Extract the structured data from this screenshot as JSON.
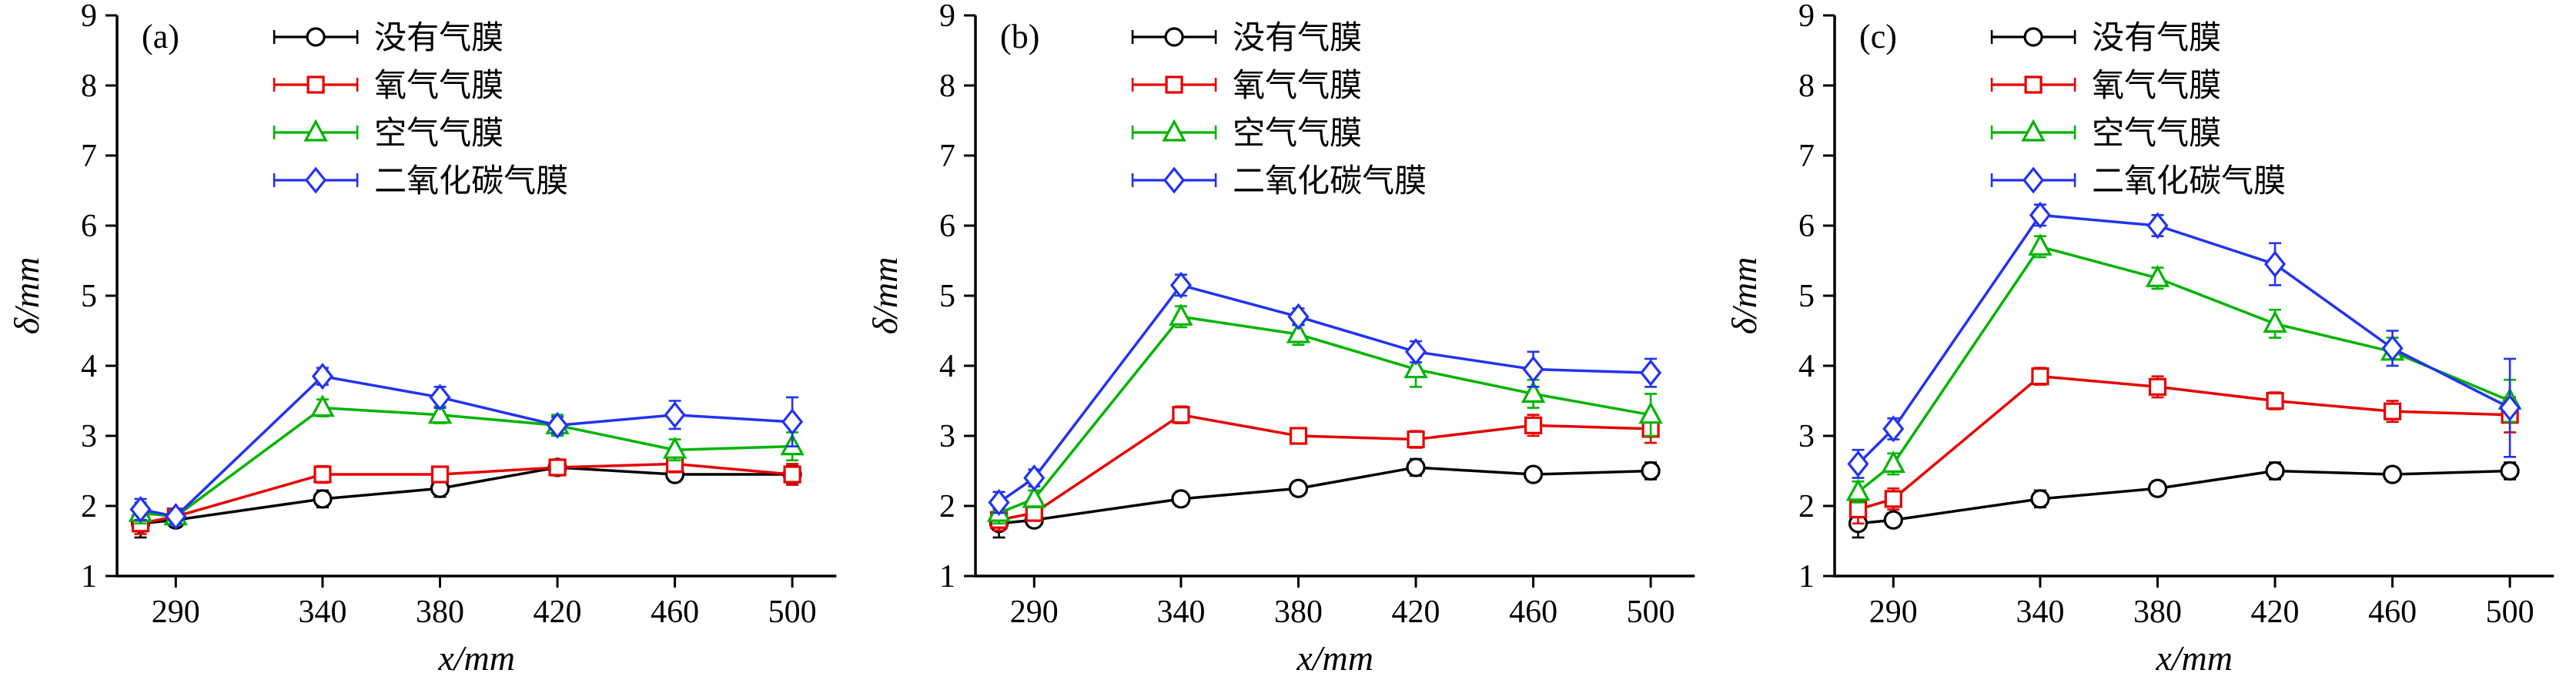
{
  "figure": {
    "background": "#ffffff"
  },
  "chart_data": [
    {
      "type": "line",
      "panel_label": "(a)",
      "xlabel": "x/mm",
      "ylabel": "δ/mm",
      "xlim": [
        270,
        515
      ],
      "ylim": [
        1,
        9
      ],
      "xticks": [
        290,
        340,
        380,
        420,
        460,
        500
      ],
      "yticks": [
        1,
        2,
        3,
        4,
        5,
        6,
        7,
        8,
        9
      ],
      "x": [
        278,
        290,
        340,
        380,
        420,
        460,
        500
      ],
      "grid": false,
      "legend_position": "top-right-inside",
      "series": [
        {
          "name": "没有气膜",
          "color": "#000000",
          "marker": "circle",
          "values": [
            1.75,
            1.8,
            2.1,
            2.25,
            2.55,
            2.45,
            2.45
          ],
          "errors": [
            0.2,
            0.1,
            0.12,
            0.12,
            0.1,
            0.1,
            0.12
          ]
        },
        {
          "name": "氧气气膜",
          "color": "#e60000",
          "marker": "square",
          "values": [
            1.75,
            1.85,
            2.45,
            2.45,
            2.55,
            2.6,
            2.45
          ],
          "errors": [
            0.15,
            0.1,
            0.12,
            0.1,
            0.1,
            0.12,
            0.15
          ]
        },
        {
          "name": "空气气膜",
          "color": "#00b400",
          "marker": "triangle",
          "values": [
            1.9,
            1.85,
            3.4,
            3.3,
            3.15,
            2.8,
            2.85
          ],
          "errors": [
            0.15,
            0.1,
            0.12,
            0.12,
            0.15,
            0.15,
            0.2
          ]
        },
        {
          "name": "二氧化碳气膜",
          "color": "#2233ee",
          "marker": "diamond",
          "values": [
            1.95,
            1.85,
            3.85,
            3.55,
            3.15,
            3.3,
            3.2
          ],
          "errors": [
            0.15,
            0.1,
            0.12,
            0.15,
            0.12,
            0.2,
            0.35
          ]
        }
      ]
    },
    {
      "type": "line",
      "panel_label": "(b)",
      "xlabel": "x/mm",
      "ylabel": "δ/mm",
      "xlim": [
        270,
        515
      ],
      "ylim": [
        1,
        9
      ],
      "xticks": [
        290,
        340,
        380,
        420,
        460,
        500
      ],
      "yticks": [
        1,
        2,
        3,
        4,
        5,
        6,
        7,
        8,
        9
      ],
      "x": [
        278,
        290,
        340,
        380,
        420,
        460,
        500
      ],
      "grid": false,
      "legend_position": "top-right-inside",
      "series": [
        {
          "name": "没有气膜",
          "color": "#000000",
          "marker": "circle",
          "values": [
            1.75,
            1.8,
            2.1,
            2.25,
            2.55,
            2.45,
            2.5
          ],
          "errors": [
            0.2,
            0.1,
            0.1,
            0.1,
            0.12,
            0.1,
            0.12
          ]
        },
        {
          "name": "氧气气膜",
          "color": "#e60000",
          "marker": "square",
          "values": [
            1.8,
            1.9,
            3.3,
            3.0,
            2.95,
            3.15,
            3.1
          ],
          "errors": [
            0.15,
            0.1,
            0.12,
            0.1,
            0.12,
            0.15,
            0.2
          ]
        },
        {
          "name": "空气气膜",
          "color": "#00b400",
          "marker": "triangle",
          "values": [
            1.9,
            2.1,
            4.7,
            4.45,
            3.95,
            3.6,
            3.3
          ],
          "errors": [
            0.15,
            0.12,
            0.15,
            0.15,
            0.25,
            0.2,
            0.3
          ]
        },
        {
          "name": "二氧化碳气膜",
          "color": "#2233ee",
          "marker": "diamond",
          "values": [
            2.05,
            2.4,
            5.15,
            4.7,
            4.2,
            3.95,
            3.9
          ],
          "errors": [
            0.15,
            0.12,
            0.15,
            0.12,
            0.15,
            0.25,
            0.2
          ]
        }
      ]
    },
    {
      "type": "line",
      "panel_label": "(c)",
      "xlabel": "x/mm",
      "ylabel": "δ/mm",
      "xlim": [
        270,
        515
      ],
      "ylim": [
        1,
        9
      ],
      "xticks": [
        290,
        340,
        380,
        420,
        460,
        500
      ],
      "yticks": [
        1,
        2,
        3,
        4,
        5,
        6,
        7,
        8,
        9
      ],
      "x": [
        278,
        290,
        340,
        380,
        420,
        460,
        500
      ],
      "grid": false,
      "legend_position": "top-right-inside",
      "series": [
        {
          "name": "没有气膜",
          "color": "#000000",
          "marker": "circle",
          "values": [
            1.75,
            1.8,
            2.1,
            2.25,
            2.5,
            2.45,
            2.5
          ],
          "errors": [
            0.2,
            0.1,
            0.12,
            0.1,
            0.12,
            0.1,
            0.12
          ]
        },
        {
          "name": "氧气气膜",
          "color": "#e60000",
          "marker": "square",
          "values": [
            1.95,
            2.1,
            3.85,
            3.7,
            3.5,
            3.35,
            3.3
          ],
          "errors": [
            0.2,
            0.15,
            0.12,
            0.15,
            0.12,
            0.15,
            0.25
          ]
        },
        {
          "name": "空气气膜",
          "color": "#00b400",
          "marker": "triangle",
          "values": [
            2.2,
            2.6,
            5.7,
            5.25,
            4.6,
            4.2,
            3.5
          ],
          "errors": [
            0.15,
            0.15,
            0.15,
            0.15,
            0.2,
            0.2,
            0.3
          ]
        },
        {
          "name": "二氧化碳气膜",
          "color": "#2233ee",
          "marker": "diamond",
          "values": [
            2.6,
            3.1,
            6.15,
            6.0,
            5.45,
            4.25,
            3.4
          ],
          "errors": [
            0.2,
            0.15,
            0.15,
            0.15,
            0.3,
            0.25,
            0.7
          ]
        }
      ]
    }
  ]
}
